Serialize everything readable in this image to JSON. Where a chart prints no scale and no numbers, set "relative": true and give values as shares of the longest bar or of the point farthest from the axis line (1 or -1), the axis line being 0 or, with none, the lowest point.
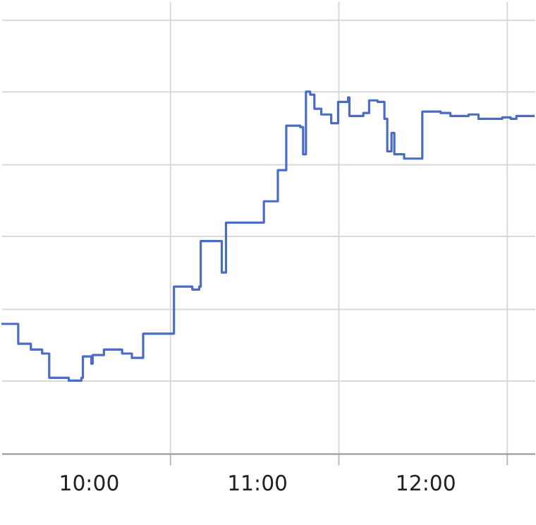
{
  "chart_data": {
    "type": "step",
    "relative": true,
    "grid": true,
    "xlim": [
      9.483,
      12.65
    ],
    "xticks": [
      {
        "value": 10,
        "label": "10:00"
      },
      {
        "value": 10.483,
        "label": null
      },
      {
        "value": 11,
        "label": "11:00"
      },
      {
        "value": 11.483,
        "label": null
      },
      {
        "value": 12,
        "label": "12:00"
      },
      {
        "value": 12.483,
        "label": null
      }
    ],
    "series": [
      {
        "color": "#4a6cc4",
        "x": [
          9.483,
          9.583,
          9.658,
          9.725,
          9.767,
          9.883,
          9.958,
          9.967,
          10.017,
          10.025,
          10.092,
          10.2,
          10.258,
          10.325,
          10.508,
          10.617,
          10.658,
          10.667,
          10.792,
          10.817,
          11.042,
          11.125,
          11.175,
          11.258,
          11.275,
          11.292,
          11.317,
          11.342,
          11.383,
          11.442,
          11.483,
          11.542,
          11.55,
          11.633,
          11.667,
          11.717,
          11.758,
          11.775,
          11.8,
          11.817,
          11.875,
          11.983,
          12.092,
          12.15,
          12.258,
          12.317,
          12.458,
          12.508,
          12.542,
          12.65
        ],
        "values": [
          0.358,
          0.303,
          0.287,
          0.276,
          0.209,
          0.201,
          0.209,
          0.268,
          0.248,
          0.272,
          0.287,
          0.276,
          0.264,
          0.331,
          0.461,
          0.453,
          0.461,
          0.587,
          0.5,
          0.638,
          0.697,
          0.783,
          0.906,
          0.902,
          0.827,
          1.0,
          0.992,
          0.953,
          0.937,
          0.913,
          0.972,
          0.984,
          0.933,
          0.941,
          0.976,
          0.972,
          0.925,
          0.835,
          0.886,
          0.827,
          0.815,
          0.945,
          0.941,
          0.933,
          0.937,
          0.925,
          0.929,
          0.925,
          0.933,
          0.933
        ]
      }
    ]
  }
}
